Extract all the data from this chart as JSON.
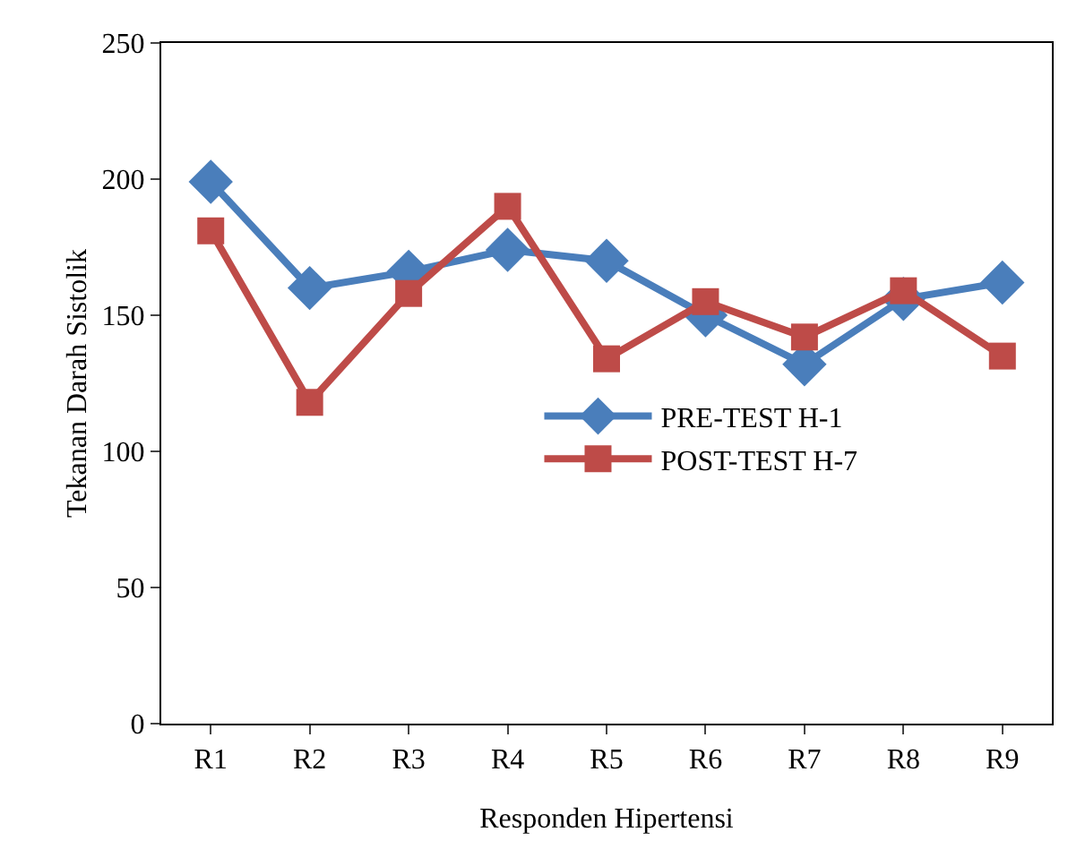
{
  "chart_data": {
    "type": "line",
    "xlabel": "Responden Hipertensi",
    "ylabel": "Tekanan Darah Sistolik",
    "categories": [
      "R1",
      "R2",
      "R3",
      "R4",
      "R5",
      "R6",
      "R7",
      "R8",
      "R9"
    ],
    "series": [
      {
        "name": "PRE-TEST H-1",
        "color": "#4a7ebb",
        "marker": "diamond",
        "values": [
          199,
          160,
          166,
          174,
          170,
          150,
          132,
          156,
          162
        ]
      },
      {
        "name": "POST-TEST H-7",
        "color": "#be4b48",
        "marker": "square",
        "values": [
          181,
          118,
          158,
          190,
          134,
          155,
          142,
          159,
          135
        ]
      }
    ],
    "ylim": [
      0,
      250
    ],
    "yticks": [
      0,
      50,
      100,
      150,
      200,
      250
    ],
    "grid": false,
    "legend": "center",
    "line_style": "solid"
  }
}
